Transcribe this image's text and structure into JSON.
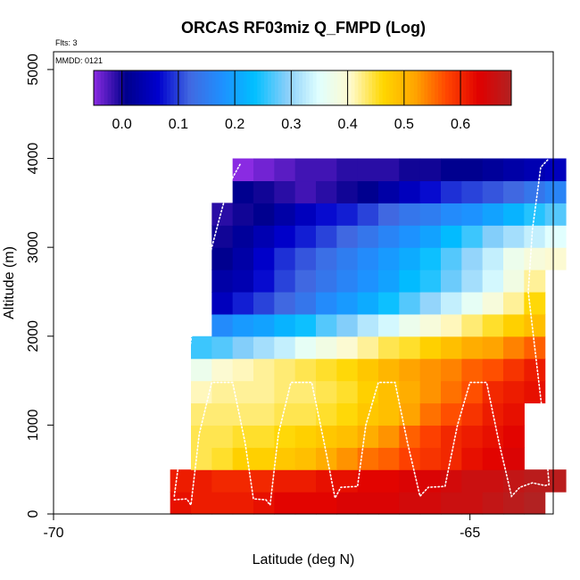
{
  "chart_data": {
    "type": "heatmap",
    "title": "ORCAS RF03miz Q_FMPD (Log)",
    "flights_label": "Flts: 3",
    "date_label": "MMDD: 0121",
    "xlabel": "Latitude (deg N)",
    "ylabel": "Altitude (m)",
    "xlim": [
      -70,
      -64
    ],
    "ylim": [
      0,
      5200
    ],
    "x_ticks": [
      -70,
      -65
    ],
    "y_ticks": [
      0,
      1000,
      2000,
      3000,
      4000,
      5000
    ],
    "colorbar": {
      "range": [
        -0.05,
        0.69
      ],
      "ticks": [
        0.0,
        0.1,
        0.2,
        0.3,
        0.4,
        0.5,
        0.6
      ],
      "tick_labels": [
        "0.0",
        "0.1",
        "0.2",
        "0.3",
        "0.4",
        "0.5",
        "0.6"
      ],
      "stops": [
        "#8a2be2",
        "#00008b",
        "#0000cd",
        "#4169e1",
        "#1e90ff",
        "#00bfff",
        "#87cefa",
        "#e0ffff",
        "#fffacd",
        "#ffd700",
        "#ffa500",
        "#ff4500",
        "#e00000",
        "#b22222"
      ]
    },
    "cell_size": {
      "lat": 0.25,
      "alt": 250
    },
    "rows": [
      {
        "alt": 0,
        "lat0": -68.6,
        "values": [
          0.62,
          0.61,
          0.61,
          0.61,
          0.62,
          0.63,
          0.63,
          0.63,
          0.64,
          0.64,
          0.64,
          0.65,
          0.65,
          0.66,
          0.66,
          0.67,
          0.68,
          0.69
        ]
      },
      {
        "alt": 250,
        "lat0": -68.6,
        "values": [
          0.61,
          0.61,
          0.6,
          0.6,
          0.6,
          0.61,
          0.61,
          0.62,
          0.62,
          0.63,
          0.63,
          0.64,
          0.64,
          0.65,
          0.66,
          0.66,
          0.67,
          0.68,
          0.68
        ]
      },
      {
        "alt": 500,
        "lat0": -68.35,
        "values": [
          0.44,
          0.45,
          0.47,
          0.47,
          0.48,
          0.49,
          0.51,
          0.53,
          0.55,
          0.56,
          0.58,
          0.59,
          0.6,
          0.62,
          0.63,
          0.64
        ]
      },
      {
        "alt": 750,
        "lat0": -68.35,
        "values": [
          0.44,
          0.44,
          0.45,
          0.45,
          0.46,
          0.47,
          0.48,
          0.49,
          0.51,
          0.53,
          0.56,
          0.58,
          0.6,
          0.61,
          0.62,
          0.63
        ]
      },
      {
        "alt": 1000,
        "lat0": -68.35,
        "values": [
          0.43,
          0.43,
          0.43,
          0.43,
          0.44,
          0.44,
          0.45,
          0.46,
          0.48,
          0.49,
          0.52,
          0.55,
          0.57,
          0.59,
          0.61,
          0.62
        ]
      },
      {
        "alt": 1250,
        "lat0": -68.35,
        "values": [
          0.41,
          0.42,
          0.42,
          0.42,
          0.43,
          0.43,
          0.44,
          0.45,
          0.47,
          0.49,
          0.51,
          0.53,
          0.55,
          0.57,
          0.6,
          0.61,
          0.62
        ]
      },
      {
        "alt": 1500,
        "lat0": -68.35,
        "values": [
          0.37,
          0.4,
          0.41,
          0.42,
          0.43,
          0.44,
          0.45,
          0.46,
          0.48,
          0.5,
          0.52,
          0.53,
          0.54,
          0.56,
          0.57,
          0.59,
          0.61
        ]
      },
      {
        "alt": 1750,
        "lat0": -68.35,
        "values": [
          0.26,
          0.27,
          0.29,
          0.31,
          0.33,
          0.36,
          0.38,
          0.4,
          0.42,
          0.44,
          0.45,
          0.47,
          0.49,
          0.51,
          0.52,
          0.54,
          0.56
        ]
      },
      {
        "alt": 2000,
        "lat0": -68.1,
        "values": [
          0.17,
          0.19,
          0.2,
          0.22,
          0.24,
          0.27,
          0.29,
          0.32,
          0.34,
          0.37,
          0.39,
          0.41,
          0.43,
          0.45,
          0.47,
          0.49
        ]
      },
      {
        "alt": 2250,
        "lat0": -68.1,
        "values": [
          0.05,
          0.08,
          0.1,
          0.12,
          0.14,
          0.17,
          0.19,
          0.21,
          0.24,
          0.27,
          0.3,
          0.33,
          0.36,
          0.39,
          0.42,
          0.46
        ]
      },
      {
        "alt": 2500,
        "lat0": -68.1,
        "values": [
          0.03,
          0.04,
          0.07,
          0.1,
          0.12,
          0.14,
          0.16,
          0.18,
          0.2,
          0.23,
          0.25,
          0.28,
          0.31,
          0.34,
          0.38,
          0.42
        ]
      },
      {
        "alt": 2750,
        "lat0": -68.1,
        "values": [
          0.01,
          0.03,
          0.06,
          0.09,
          0.11,
          0.13,
          0.15,
          0.17,
          0.19,
          0.21,
          0.24,
          0.27,
          0.3,
          0.33,
          0.37,
          0.39,
          0.4
        ]
      },
      {
        "alt": 3000,
        "lat0": -68.1,
        "values": [
          0.0,
          0.02,
          0.04,
          0.06,
          0.08,
          0.1,
          0.12,
          0.14,
          0.16,
          0.18,
          0.2,
          0.23,
          0.26,
          0.29,
          0.31,
          0.33,
          0.35
        ]
      },
      {
        "alt": 3250,
        "lat0": -68.1,
        "values": [
          -0.01,
          0.0,
          0.01,
          0.03,
          0.05,
          0.07,
          0.08,
          0.1,
          0.12,
          0.14,
          0.15,
          0.17,
          0.18,
          0.2,
          0.22,
          0.25,
          0.27
        ]
      },
      {
        "alt": 3500,
        "lat0": -67.85,
        "values": [
          0.01,
          0.0,
          -0.01,
          -0.02,
          -0.01,
          0.0,
          0.01,
          0.03,
          0.05,
          0.07,
          0.09,
          0.1,
          0.11,
          0.12,
          0.14,
          0.16
        ]
      },
      {
        "alt": 3750,
        "lat0": -67.85,
        "values": [
          -0.05,
          -0.04,
          -0.03,
          -0.02,
          -0.02,
          -0.01,
          -0.01,
          -0.01,
          0.0,
          0.0,
          0.01,
          0.01,
          0.02,
          0.03,
          0.04,
          0.05
        ]
      }
    ],
    "flight_track": [
      [
        -68.55,
        160
      ],
      [
        -68.4,
        170
      ],
      [
        -68.35,
        100
      ],
      [
        -68.25,
        900
      ],
      [
        -68.1,
        1480
      ],
      [
        -67.85,
        1480
      ],
      [
        -67.7,
        800
      ],
      [
        -67.6,
        170
      ],
      [
        -67.45,
        160
      ],
      [
        -67.4,
        100
      ],
      [
        -67.3,
        900
      ],
      [
        -67.15,
        1480
      ],
      [
        -66.9,
        1480
      ],
      [
        -66.75,
        800
      ],
      [
        -66.62,
        180
      ],
      [
        -66.55,
        300
      ],
      [
        -66.35,
        310
      ],
      [
        -66.25,
        1000
      ],
      [
        -66.1,
        1480
      ],
      [
        -65.9,
        1480
      ],
      [
        -65.75,
        800
      ],
      [
        -65.6,
        200
      ],
      [
        -65.5,
        300
      ],
      [
        -65.3,
        310
      ],
      [
        -65.15,
        1000
      ],
      [
        -65.0,
        1480
      ],
      [
        -64.8,
        1480
      ],
      [
        -64.65,
        800
      ],
      [
        -64.5,
        200
      ],
      [
        -64.4,
        300
      ],
      [
        -64.25,
        350
      ],
      [
        -64.1,
        320
      ],
      [
        -64.05,
        330
      ],
      [
        -64.1,
        900
      ],
      [
        -64.2,
        1700
      ],
      [
        -64.3,
        2500
      ],
      [
        -64.25,
        3200
      ],
      [
        -64.15,
        3900
      ],
      [
        -64.05,
        4000
      ]
    ],
    "climb_track": [
      [
        -68.55,
        200
      ],
      [
        -68.45,
        900
      ],
      [
        -68.4,
        1600
      ],
      [
        -68.3,
        2300
      ],
      [
        -68.1,
        3000
      ],
      [
        -67.9,
        3700
      ],
      [
        -67.75,
        3950
      ]
    ]
  }
}
